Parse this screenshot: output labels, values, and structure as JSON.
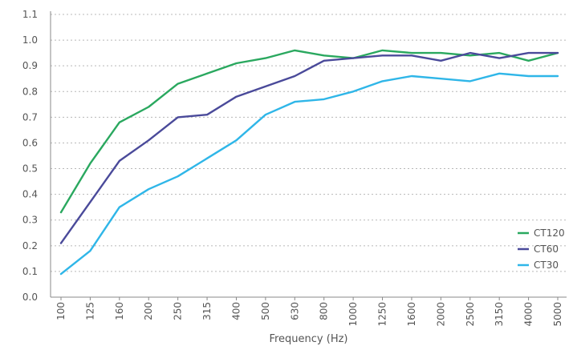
{
  "chart_data": {
    "type": "line",
    "xlabel": "Frequency (Hz)",
    "ylabel": "",
    "categories": [
      "100",
      "125",
      "160",
      "200",
      "250",
      "315",
      "400",
      "500",
      "630",
      "800",
      "1000",
      "1250",
      "1600",
      "2000",
      "2500",
      "3150",
      "4000",
      "5000"
    ],
    "ylim": [
      0,
      1.1
    ],
    "yticks": [
      "0.0",
      "0.1",
      "0.2",
      "0.3",
      "0.4",
      "0.5",
      "0.6",
      "0.7",
      "0.8",
      "0.9",
      "1.0",
      "1.1"
    ],
    "grid": true,
    "legend_position": "bottom-right",
    "series": [
      {
        "name": "CT120",
        "color": "#2aa85f",
        "values": [
          0.33,
          0.52,
          0.68,
          0.74,
          0.83,
          0.87,
          0.91,
          0.93,
          0.96,
          0.94,
          0.93,
          0.96,
          0.95,
          0.95,
          0.94,
          0.95,
          0.92,
          0.95
        ]
      },
      {
        "name": "CT60",
        "color": "#4a4a9a",
        "values": [
          0.21,
          0.37,
          0.53,
          0.61,
          0.7,
          0.71,
          0.78,
          0.82,
          0.86,
          0.92,
          0.93,
          0.94,
          0.94,
          0.92,
          0.95,
          0.93,
          0.95,
          0.95
        ]
      },
      {
        "name": "CT30",
        "color": "#2fb6e8",
        "values": [
          0.09,
          0.18,
          0.35,
          0.42,
          0.47,
          0.54,
          0.61,
          0.71,
          0.76,
          0.77,
          0.8,
          0.84,
          0.86,
          0.85,
          0.84,
          0.87,
          0.86,
          0.86
        ]
      }
    ]
  }
}
